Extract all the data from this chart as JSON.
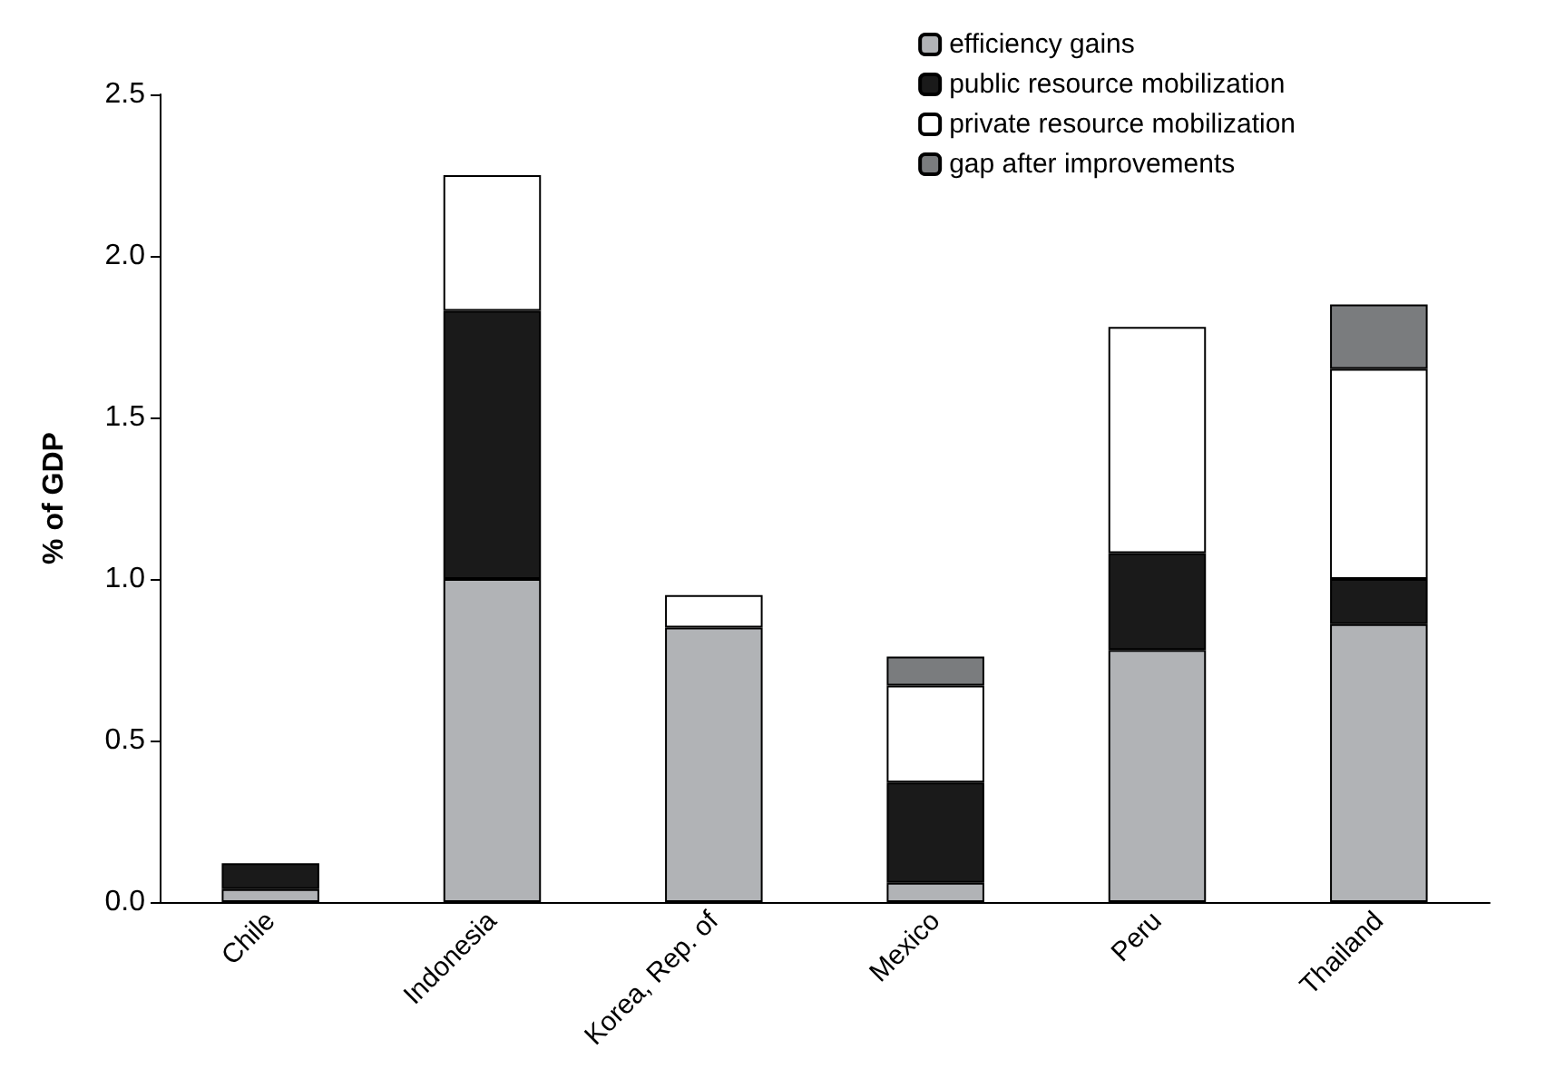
{
  "chart_data": {
    "type": "bar",
    "ylabel": "% of GDP",
    "categories": [
      "Chile",
      "Indonesia",
      "Korea, Rep. of",
      "Mexico",
      "Peru",
      "Thailand"
    ],
    "stacked": true,
    "ylim": [
      0,
      2.5
    ],
    "yticks": [
      {
        "value": 0,
        "label": "0.0"
      },
      {
        "value": 0.5,
        "label": "0.5"
      },
      {
        "value": 1,
        "label": "1.0"
      },
      {
        "value": 1.5,
        "label": "1.5"
      },
      {
        "value": 2,
        "label": "2.0"
      },
      {
        "value": 2.5,
        "label": "2.5"
      }
    ],
    "grid": false,
    "legend": "top right",
    "series": [
      {
        "name": "efficiency gains",
        "color": "#b1b3b6",
        "values": [
          0.04,
          1.0,
          0.85,
          0.06,
          0.78,
          0.86
        ]
      },
      {
        "name": "public resource mobilization",
        "color": "#1a1a1a",
        "values": [
          0.08,
          0.83,
          null,
          0.31,
          0.3,
          0.14
        ]
      },
      {
        "name": "private resource mobilization",
        "color": "#ffffff",
        "values": [
          null,
          0.42,
          0.1,
          0.3,
          0.7,
          0.65
        ]
      },
      {
        "name": "gap after improvements",
        "color": "#7a7c7e",
        "values": [
          null,
          null,
          null,
          0.09,
          null,
          0.2
        ]
      }
    ]
  }
}
